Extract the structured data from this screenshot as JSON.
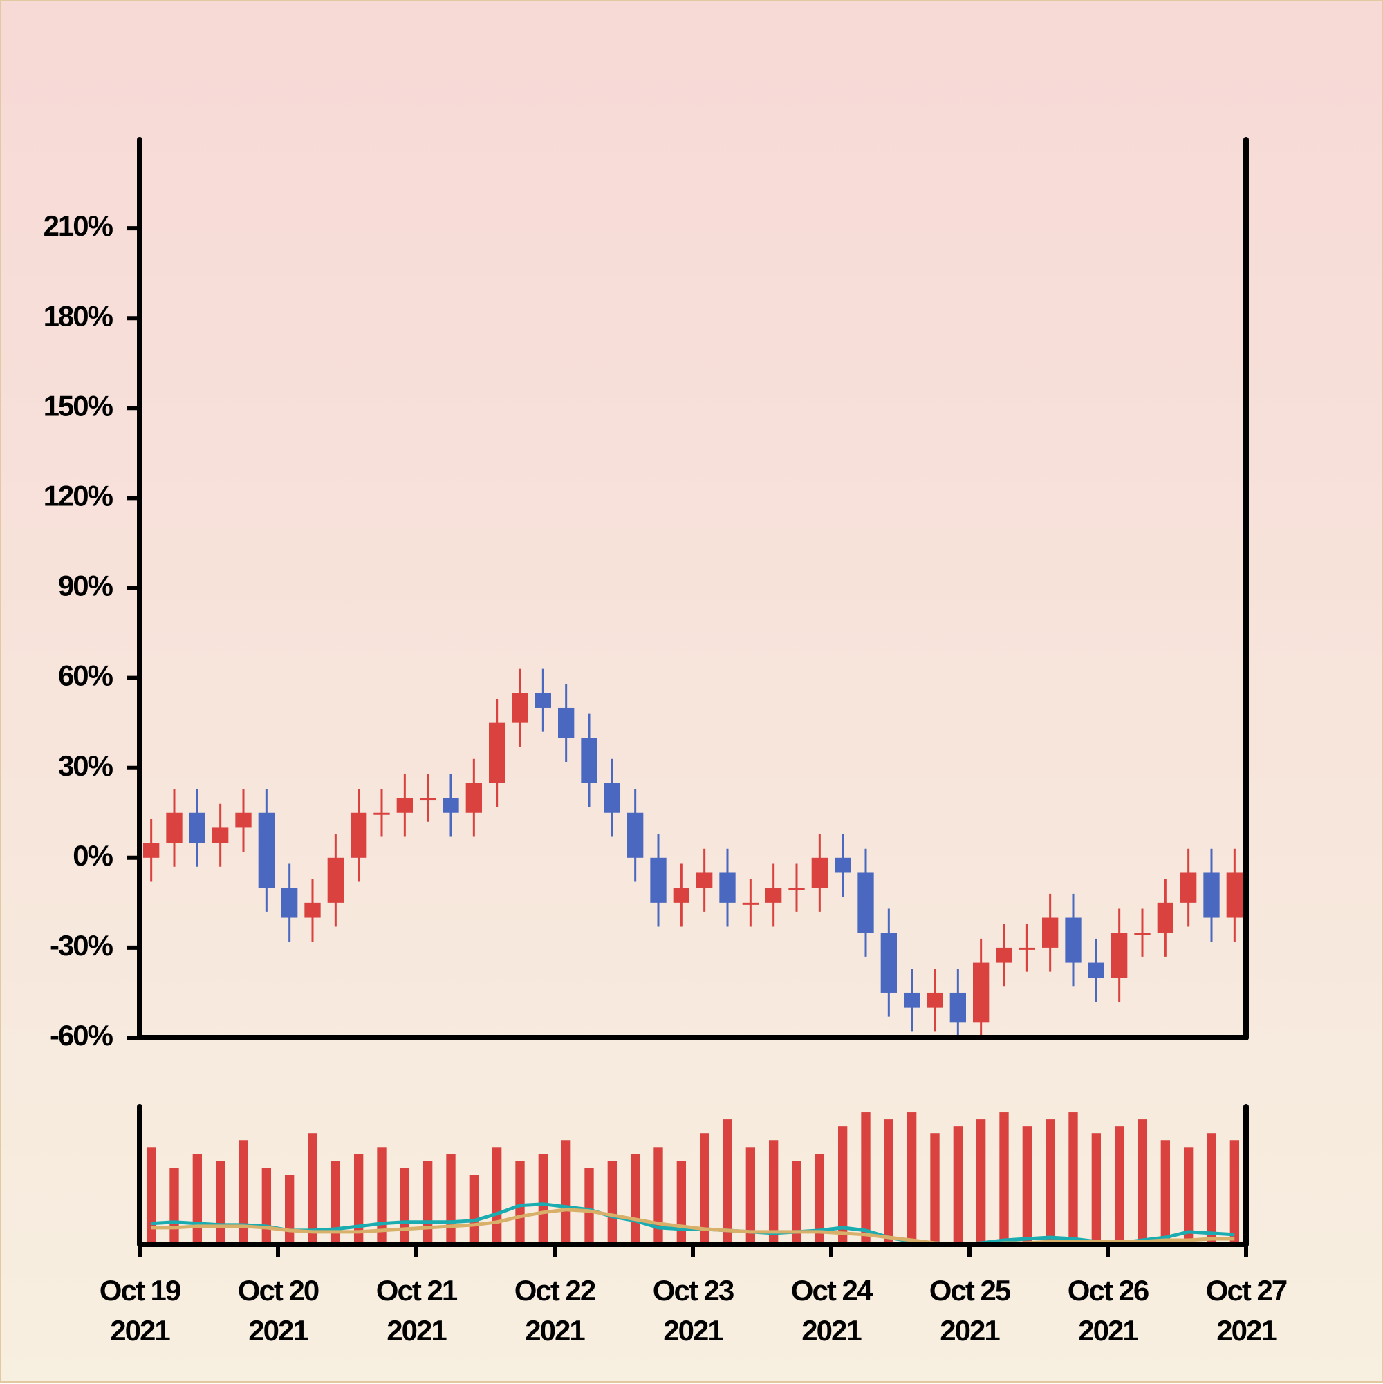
{
  "chart_data": {
    "type": "candlestick",
    "x": [
      0.0833,
      0.25,
      0.4167,
      0.5833,
      0.75,
      0.9167,
      1.0833,
      1.25,
      1.4167,
      1.5833,
      1.75,
      1.9167,
      2.0833,
      2.25,
      2.4167,
      2.5833,
      2.75,
      2.9167,
      3.0833,
      3.25,
      3.4167,
      3.5833,
      3.75,
      3.9167,
      4.0833,
      4.25,
      4.4167,
      4.5833,
      4.75,
      4.9167,
      5.0833,
      5.25,
      5.4167,
      5.5833,
      5.75,
      5.9167,
      6.0833,
      6.25,
      6.4167,
      6.5833,
      6.75,
      6.9167,
      7.0833,
      7.25,
      7.4167,
      7.5833,
      7.75,
      7.9167
    ],
    "open": [
      0,
      5,
      15,
      5,
      10,
      15,
      -10,
      -20,
      -15,
      0,
      15,
      15,
      20,
      20,
      15,
      25,
      45,
      55,
      50,
      40,
      25,
      15,
      0,
      -15,
      -10,
      -5,
      -15,
      -15,
      -10,
      -10,
      0,
      -5,
      -25,
      -45,
      -50,
      -45,
      -55,
      -35,
      -30,
      -30,
      -20,
      -35,
      -40,
      -25,
      -25,
      -15,
      -5,
      -20
    ],
    "high": [
      13,
      23,
      23,
      18,
      23,
      23,
      -2,
      -7,
      8,
      23,
      23,
      28,
      28,
      28,
      33,
      53,
      63,
      63,
      58,
      48,
      33,
      23,
      8,
      -2,
      3,
      3,
      -7,
      -2,
      -2,
      8,
      8,
      3,
      -17,
      -37,
      -37,
      -37,
      -27,
      -22,
      -22,
      -12,
      -12,
      -27,
      -17,
      -17,
      -7,
      3,
      3,
      3
    ],
    "low": [
      -8,
      -3,
      -3,
      -3,
      2,
      -18,
      -28,
      -28,
      -23,
      -8,
      7,
      7,
      12,
      7,
      7,
      17,
      37,
      42,
      32,
      17,
      7,
      -8,
      -23,
      -23,
      -18,
      -23,
      -23,
      -23,
      -18,
      -18,
      -13,
      -33,
      -53,
      -58,
      -58,
      -63,
      -63,
      -43,
      -38,
      -38,
      -43,
      -48,
      -48,
      -33,
      -33,
      -23,
      -28,
      -28
    ],
    "close": [
      5,
      15,
      5,
      10,
      15,
      -10,
      -20,
      -15,
      0,
      15,
      15,
      20,
      20,
      15,
      25,
      45,
      55,
      50,
      40,
      25,
      15,
      0,
      -15,
      -10,
      -5,
      -15,
      -15,
      -10,
      -10,
      0,
      -5,
      -25,
      -45,
      -50,
      -45,
      -55,
      -35,
      -30,
      -30,
      -20,
      -35,
      -40,
      -25,
      -25,
      -15,
      -5,
      -20,
      -5
    ],
    "up_color": "#d9423f",
    "down_color": "#4a68c0",
    "xlim": [
      0,
      8
    ],
    "xticks": [
      {
        "value": 0,
        "label": "Oct 19\n2021"
      },
      {
        "value": 1,
        "label": "Oct 20\n2021"
      },
      {
        "value": 2,
        "label": "Oct 21\n2021"
      },
      {
        "value": 3,
        "label": "Oct 22\n2021"
      },
      {
        "value": 4,
        "label": "Oct 23\n2021"
      },
      {
        "value": 5,
        "label": "Oct 24\n2021"
      },
      {
        "value": 6,
        "label": "Oct 25\n2021"
      },
      {
        "value": 7,
        "label": "Oct 26\n2021"
      },
      {
        "value": 8,
        "label": "Oct 27\n2021"
      }
    ],
    "ylim": [
      -60,
      240
    ],
    "yticks": [
      {
        "value": -60,
        "label": "-60%"
      },
      {
        "value": -30,
        "label": "-30%"
      },
      {
        "value": 0,
        "label": "0%"
      },
      {
        "value": 30,
        "label": "30%"
      },
      {
        "value": 60,
        "label": "60%"
      },
      {
        "value": 90,
        "label": "90%"
      },
      {
        "value": 120,
        "label": "120%"
      },
      {
        "value": 150,
        "label": "150%"
      },
      {
        "value": 180,
        "label": "180%"
      },
      {
        "value": 210,
        "label": "210%"
      }
    ],
    "volume": {
      "color": "#d9423f",
      "ylim": [
        0,
        100
      ],
      "values": [
        70,
        55,
        65,
        60,
        75,
        55,
        50,
        80,
        60,
        65,
        70,
        55,
        60,
        65,
        50,
        70,
        60,
        65,
        75,
        55,
        60,
        65,
        70,
        60,
        80,
        90,
        70,
        75,
        60,
        65,
        85,
        95,
        90,
        95,
        80,
        85,
        90,
        95,
        85,
        90,
        95,
        80,
        85,
        90,
        75,
        70,
        80,
        75
      ],
      "series": [
        {
          "color": "#1aacb0",
          "values": [
            15,
            16,
            15,
            14,
            14,
            13,
            10,
            10,
            11,
            13,
            15,
            16,
            16,
            16,
            17,
            22,
            28,
            29,
            27,
            25,
            20,
            17,
            12,
            11,
            11,
            10,
            9,
            8,
            9,
            10,
            12,
            10,
            5,
            2,
            1,
            0,
            1,
            3,
            4,
            5,
            4,
            2,
            1,
            3,
            5,
            9,
            8,
            7
          ]
        },
        {
          "color": "#d8b06a",
          "values": [
            12,
            12,
            13,
            13,
            13,
            12,
            10,
            9,
            9,
            9,
            10,
            11,
            12,
            13,
            14,
            16,
            20,
            23,
            25,
            24,
            21,
            18,
            15,
            13,
            11,
            10,
            9,
            9,
            9,
            9,
            8,
            7,
            5,
            3,
            1,
            0,
            0,
            1,
            1,
            2,
            2,
            2,
            2,
            2,
            3,
            3,
            4,
            4
          ]
        }
      ]
    }
  }
}
